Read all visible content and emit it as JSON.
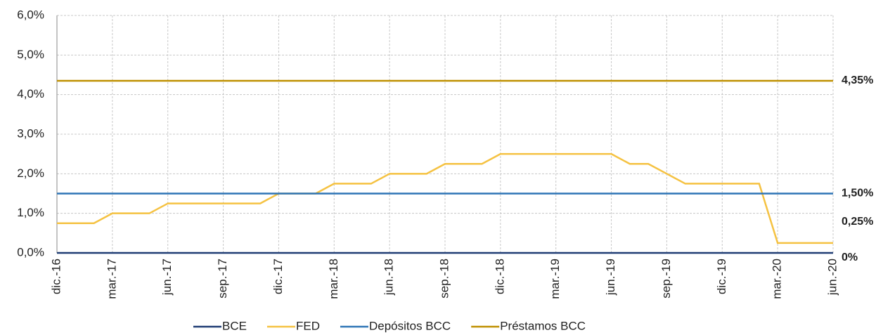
{
  "chart_data": {
    "type": "line",
    "categories": [
      "dic.-16",
      null,
      null,
      "mar.-17",
      null,
      null,
      "jun.-17",
      null,
      null,
      "sep.-17",
      null,
      null,
      "dic.-17",
      null,
      null,
      "mar.-18",
      null,
      null,
      "jun.-18",
      null,
      null,
      "sep.-18",
      null,
      null,
      "dic.-18",
      null,
      null,
      "mar.-19",
      null,
      null,
      "jun.-19",
      null,
      null,
      "sep.-19",
      null,
      null,
      "dic.-19",
      null,
      null,
      "mar.-20",
      null,
      null,
      "jun.-20"
    ],
    "ylim": [
      0,
      6
    ],
    "yticks": [
      {
        "value": 0,
        "label": "0,0%"
      },
      {
        "value": 1,
        "label": "1,0%"
      },
      {
        "value": 2,
        "label": "2,0%"
      },
      {
        "value": 3,
        "label": "3,0%"
      },
      {
        "value": 4,
        "label": "4,0%"
      },
      {
        "value": 5,
        "label": "5,0%"
      },
      {
        "value": 6,
        "label": "6,0%"
      }
    ],
    "grid": true,
    "legend": "bottom",
    "series": [
      {
        "name": "BCE",
        "color": "#1f3c74",
        "label_color": "#1f3c74",
        "values": [
          0,
          0,
          0,
          0,
          0,
          0,
          0,
          0,
          0,
          0,
          0,
          0,
          0,
          0,
          0,
          0,
          0,
          0,
          0,
          0,
          0,
          0,
          0,
          0,
          0,
          0,
          0,
          0,
          0,
          0,
          0,
          0,
          0,
          0,
          0,
          0,
          0,
          0,
          0,
          0,
          0,
          0,
          0
        ],
        "value_labels": [
          null,
          null,
          null,
          null,
          null,
          null,
          null,
          null,
          null,
          null,
          null,
          null,
          null,
          null,
          null,
          null,
          null,
          null,
          null,
          null,
          null,
          null,
          null,
          null,
          null,
          null,
          null,
          null,
          null,
          null,
          null,
          null,
          null,
          null,
          null,
          null,
          null,
          null,
          null,
          null,
          null,
          null,
          "0%"
        ]
      },
      {
        "name": "FED",
        "color": "#f5c242",
        "label_color": "#f5c242",
        "values": [
          0.75,
          0.75,
          0.75,
          1.0,
          1.0,
          1.0,
          1.25,
          1.25,
          1.25,
          1.25,
          1.25,
          1.25,
          1.5,
          1.5,
          1.5,
          1.75,
          1.75,
          1.75,
          2.0,
          2.0,
          2.0,
          2.25,
          2.25,
          2.25,
          2.5,
          2.5,
          2.5,
          2.5,
          2.5,
          2.5,
          2.5,
          2.25,
          2.25,
          2.0,
          1.75,
          1.75,
          1.75,
          1.75,
          1.75,
          0.25,
          0.25,
          0.25,
          0.25
        ],
        "value_labels": [
          null,
          null,
          null,
          null,
          null,
          null,
          null,
          null,
          null,
          null,
          null,
          null,
          null,
          null,
          null,
          null,
          null,
          null,
          null,
          null,
          null,
          null,
          null,
          null,
          null,
          null,
          null,
          null,
          null,
          null,
          null,
          null,
          null,
          null,
          null,
          null,
          null,
          null,
          null,
          null,
          null,
          null,
          "0,25%"
        ]
      },
      {
        "name": "Depósitos BCC",
        "color": "#2e75b6",
        "label_color": "#2e75b6",
        "values": [
          1.5,
          1.5,
          1.5,
          1.5,
          1.5,
          1.5,
          1.5,
          1.5,
          1.5,
          1.5,
          1.5,
          1.5,
          1.5,
          1.5,
          1.5,
          1.5,
          1.5,
          1.5,
          1.5,
          1.5,
          1.5,
          1.5,
          1.5,
          1.5,
          1.5,
          1.5,
          1.5,
          1.5,
          1.5,
          1.5,
          1.5,
          1.5,
          1.5,
          1.5,
          1.5,
          1.5,
          1.5,
          1.5,
          1.5,
          1.5,
          1.5,
          1.5,
          1.5
        ],
        "value_labels": [
          null,
          null,
          null,
          null,
          null,
          null,
          null,
          null,
          null,
          null,
          null,
          null,
          null,
          null,
          null,
          null,
          null,
          null,
          null,
          null,
          null,
          null,
          null,
          null,
          null,
          null,
          null,
          null,
          null,
          null,
          null,
          null,
          null,
          null,
          null,
          null,
          null,
          null,
          null,
          null,
          null,
          null,
          "1,50%"
        ]
      },
      {
        "name": "Préstamos BCC",
        "color": "#bf9000",
        "label_color": "#f5c242",
        "values": [
          4.35,
          4.35,
          4.35,
          4.35,
          4.35,
          4.35,
          4.35,
          4.35,
          4.35,
          4.35,
          4.35,
          4.35,
          4.35,
          4.35,
          4.35,
          4.35,
          4.35,
          4.35,
          4.35,
          4.35,
          4.35,
          4.35,
          4.35,
          4.35,
          4.35,
          4.35,
          4.35,
          4.35,
          4.35,
          4.35,
          4.35,
          4.35,
          4.35,
          4.35,
          4.35,
          4.35,
          4.35,
          4.35,
          4.35,
          4.35,
          4.35,
          4.35,
          4.35
        ],
        "value_labels": [
          null,
          null,
          null,
          null,
          null,
          null,
          null,
          null,
          null,
          null,
          null,
          null,
          null,
          null,
          null,
          null,
          null,
          null,
          null,
          null,
          null,
          null,
          null,
          null,
          null,
          null,
          null,
          null,
          null,
          null,
          null,
          null,
          null,
          null,
          null,
          null,
          null,
          null,
          null,
          null,
          null,
          null,
          "4,35%"
        ]
      }
    ]
  }
}
